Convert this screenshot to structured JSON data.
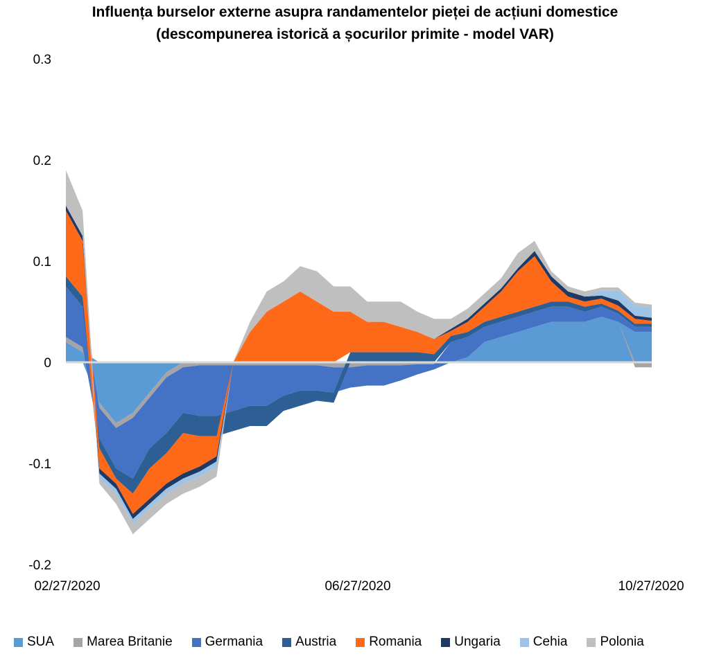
{
  "chart_data": {
    "type": "area",
    "stacked": true,
    "title": "Influența burselor externe asupra randamentelor pieței de acțiuni domestice",
    "subtitle": "(descompunerea istorică a șocurilor primite - model VAR)",
    "xlabel": "",
    "ylabel": "",
    "ylim": [
      -0.2,
      0.3
    ],
    "yticks": [
      -0.2,
      -0.1,
      0,
      0.1,
      0.2,
      0.3
    ],
    "ytick_labels": [
      "-0.2",
      "-0.1",
      "0",
      "0.1",
      "0.2",
      "0.3"
    ],
    "xtick_labels": [
      "02/27/2020",
      "06/27/2020",
      "10/27/2020"
    ],
    "grid": false,
    "legend_position": "bottom",
    "x": [
      "02/27/2020",
      "03/05/2020",
      "03/12/2020",
      "03/19/2020",
      "03/26/2020",
      "04/02/2020",
      "04/09/2020",
      "04/16/2020",
      "04/23/2020",
      "04/30/2020",
      "05/07/2020",
      "05/14/2020",
      "05/21/2020",
      "05/28/2020",
      "06/04/2020",
      "06/11/2020",
      "06/18/2020",
      "06/25/2020",
      "07/02/2020",
      "07/09/2020",
      "07/16/2020",
      "07/23/2020",
      "07/30/2020",
      "08/06/2020",
      "08/13/2020",
      "08/20/2020",
      "08/27/2020",
      "09/03/2020",
      "09/10/2020",
      "09/17/2020",
      "09/24/2020",
      "10/01/2020",
      "10/08/2020",
      "10/15/2020",
      "10/22/2020",
      "10/27/2020"
    ],
    "series": [
      {
        "name": "SUA",
        "color": "#5B9BD5",
        "values": [
          0.02,
          0.01,
          -0.04,
          -0.06,
          -0.05,
          -0.03,
          -0.01,
          0.0,
          0.0,
          0.0,
          0.0,
          0.0,
          0.0,
          0.0,
          0.0,
          0.0,
          0.0,
          0.0,
          0.0,
          0.0,
          0.0,
          0.0,
          0.0,
          0.0,
          0.005,
          0.02,
          0.025,
          0.03,
          0.035,
          0.04,
          0.04,
          0.04,
          0.045,
          0.04,
          0.03,
          0.03
        ]
      },
      {
        "name": "Marea Britanie",
        "color": "#A5A5A5",
        "values": [
          0.005,
          0.005,
          -0.005,
          -0.005,
          -0.005,
          -0.005,
          -0.005,
          -0.005,
          -0.003,
          -0.003,
          -0.003,
          -0.003,
          -0.003,
          -0.003,
          -0.003,
          -0.003,
          -0.005,
          -0.005,
          -0.003,
          -0.003,
          -0.003,
          -0.002,
          -0.002,
          0.0,
          0.0,
          0.0,
          0.0,
          0.0,
          0.0,
          0.0,
          0.0,
          0.0,
          0.0,
          0.0,
          -0.005,
          -0.005
        ]
      },
      {
        "name": "Germania",
        "color": "#4472C4",
        "values": [
          0.05,
          0.04,
          -0.03,
          -0.04,
          -0.06,
          -0.05,
          -0.055,
          -0.045,
          -0.05,
          -0.05,
          -0.045,
          -0.04,
          -0.04,
          -0.03,
          -0.025,
          -0.025,
          -0.025,
          -0.02,
          -0.02,
          -0.02,
          -0.015,
          -0.01,
          -0.005,
          0.02,
          0.02,
          0.015,
          0.015,
          0.015,
          0.015,
          0.015,
          0.015,
          0.01,
          0.01,
          0.008,
          0.005,
          0.005
        ]
      },
      {
        "name": "Austria",
        "color": "#2E5F94",
        "values": [
          0.01,
          0.01,
          -0.01,
          -0.01,
          -0.015,
          -0.02,
          -0.02,
          -0.02,
          -0.02,
          -0.02,
          -0.02,
          -0.02,
          -0.02,
          -0.015,
          -0.015,
          -0.01,
          -0.01,
          0.01,
          0.01,
          0.01,
          0.01,
          0.01,
          0.008,
          0.006,
          0.005,
          0.005,
          0.005,
          0.005,
          0.005,
          0.005,
          0.005,
          0.005,
          0.003,
          0.003,
          0.003,
          0.003
        ]
      },
      {
        "name": "Romania",
        "color": "#FF6A1A",
        "values": [
          0.065,
          0.055,
          -0.02,
          -0.005,
          -0.02,
          -0.03,
          -0.03,
          -0.04,
          -0.03,
          -0.02,
          0.0,
          0.03,
          0.05,
          0.06,
          0.07,
          0.06,
          0.05,
          0.04,
          0.03,
          0.03,
          0.025,
          0.02,
          0.015,
          0.005,
          0.01,
          0.015,
          0.025,
          0.04,
          0.05,
          0.02,
          0.005,
          0.005,
          0.005,
          0.005,
          0.005,
          0.003
        ]
      },
      {
        "name": "Ungaria",
        "color": "#203864",
        "values": [
          0.005,
          0.005,
          -0.005,
          -0.005,
          -0.005,
          -0.005,
          -0.005,
          -0.005,
          -0.005,
          -0.005,
          0.0,
          0.0,
          0.0,
          0.0,
          0.0,
          0.0,
          0.0,
          0.0,
          0.0,
          0.0,
          0.0,
          0.0,
          0.0,
          0.002,
          0.003,
          0.003,
          0.003,
          0.003,
          0.005,
          0.005,
          0.005,
          0.005,
          0.003,
          0.005,
          0.003,
          0.003
        ]
      },
      {
        "name": "Cehia",
        "color": "#9DC3E6",
        "values": [
          0.0,
          0.0,
          -0.005,
          -0.005,
          -0.005,
          -0.005,
          -0.005,
          -0.005,
          -0.005,
          -0.005,
          0.0,
          0.0,
          0.0,
          0.0,
          0.0,
          0.0,
          0.0,
          0.0,
          0.0,
          0.0,
          0.0,
          0.0,
          0.0,
          0.0,
          0.0,
          0.0,
          0.0,
          0.0,
          0.0,
          0.0,
          0.0,
          0.0,
          0.005,
          0.01,
          0.01,
          0.01
        ]
      },
      {
        "name": "Polonia",
        "color": "#BFBFBF",
        "values": [
          0.035,
          0.025,
          -0.005,
          -0.01,
          -0.01,
          -0.01,
          -0.01,
          -0.01,
          -0.01,
          -0.01,
          0.0,
          0.01,
          0.02,
          0.02,
          0.025,
          0.03,
          0.025,
          0.025,
          0.02,
          0.02,
          0.025,
          0.02,
          0.02,
          0.01,
          0.01,
          0.01,
          0.01,
          0.015,
          0.01,
          0.005,
          0.005,
          0.005,
          0.003,
          0.003,
          0.003,
          0.003
        ]
      }
    ]
  }
}
